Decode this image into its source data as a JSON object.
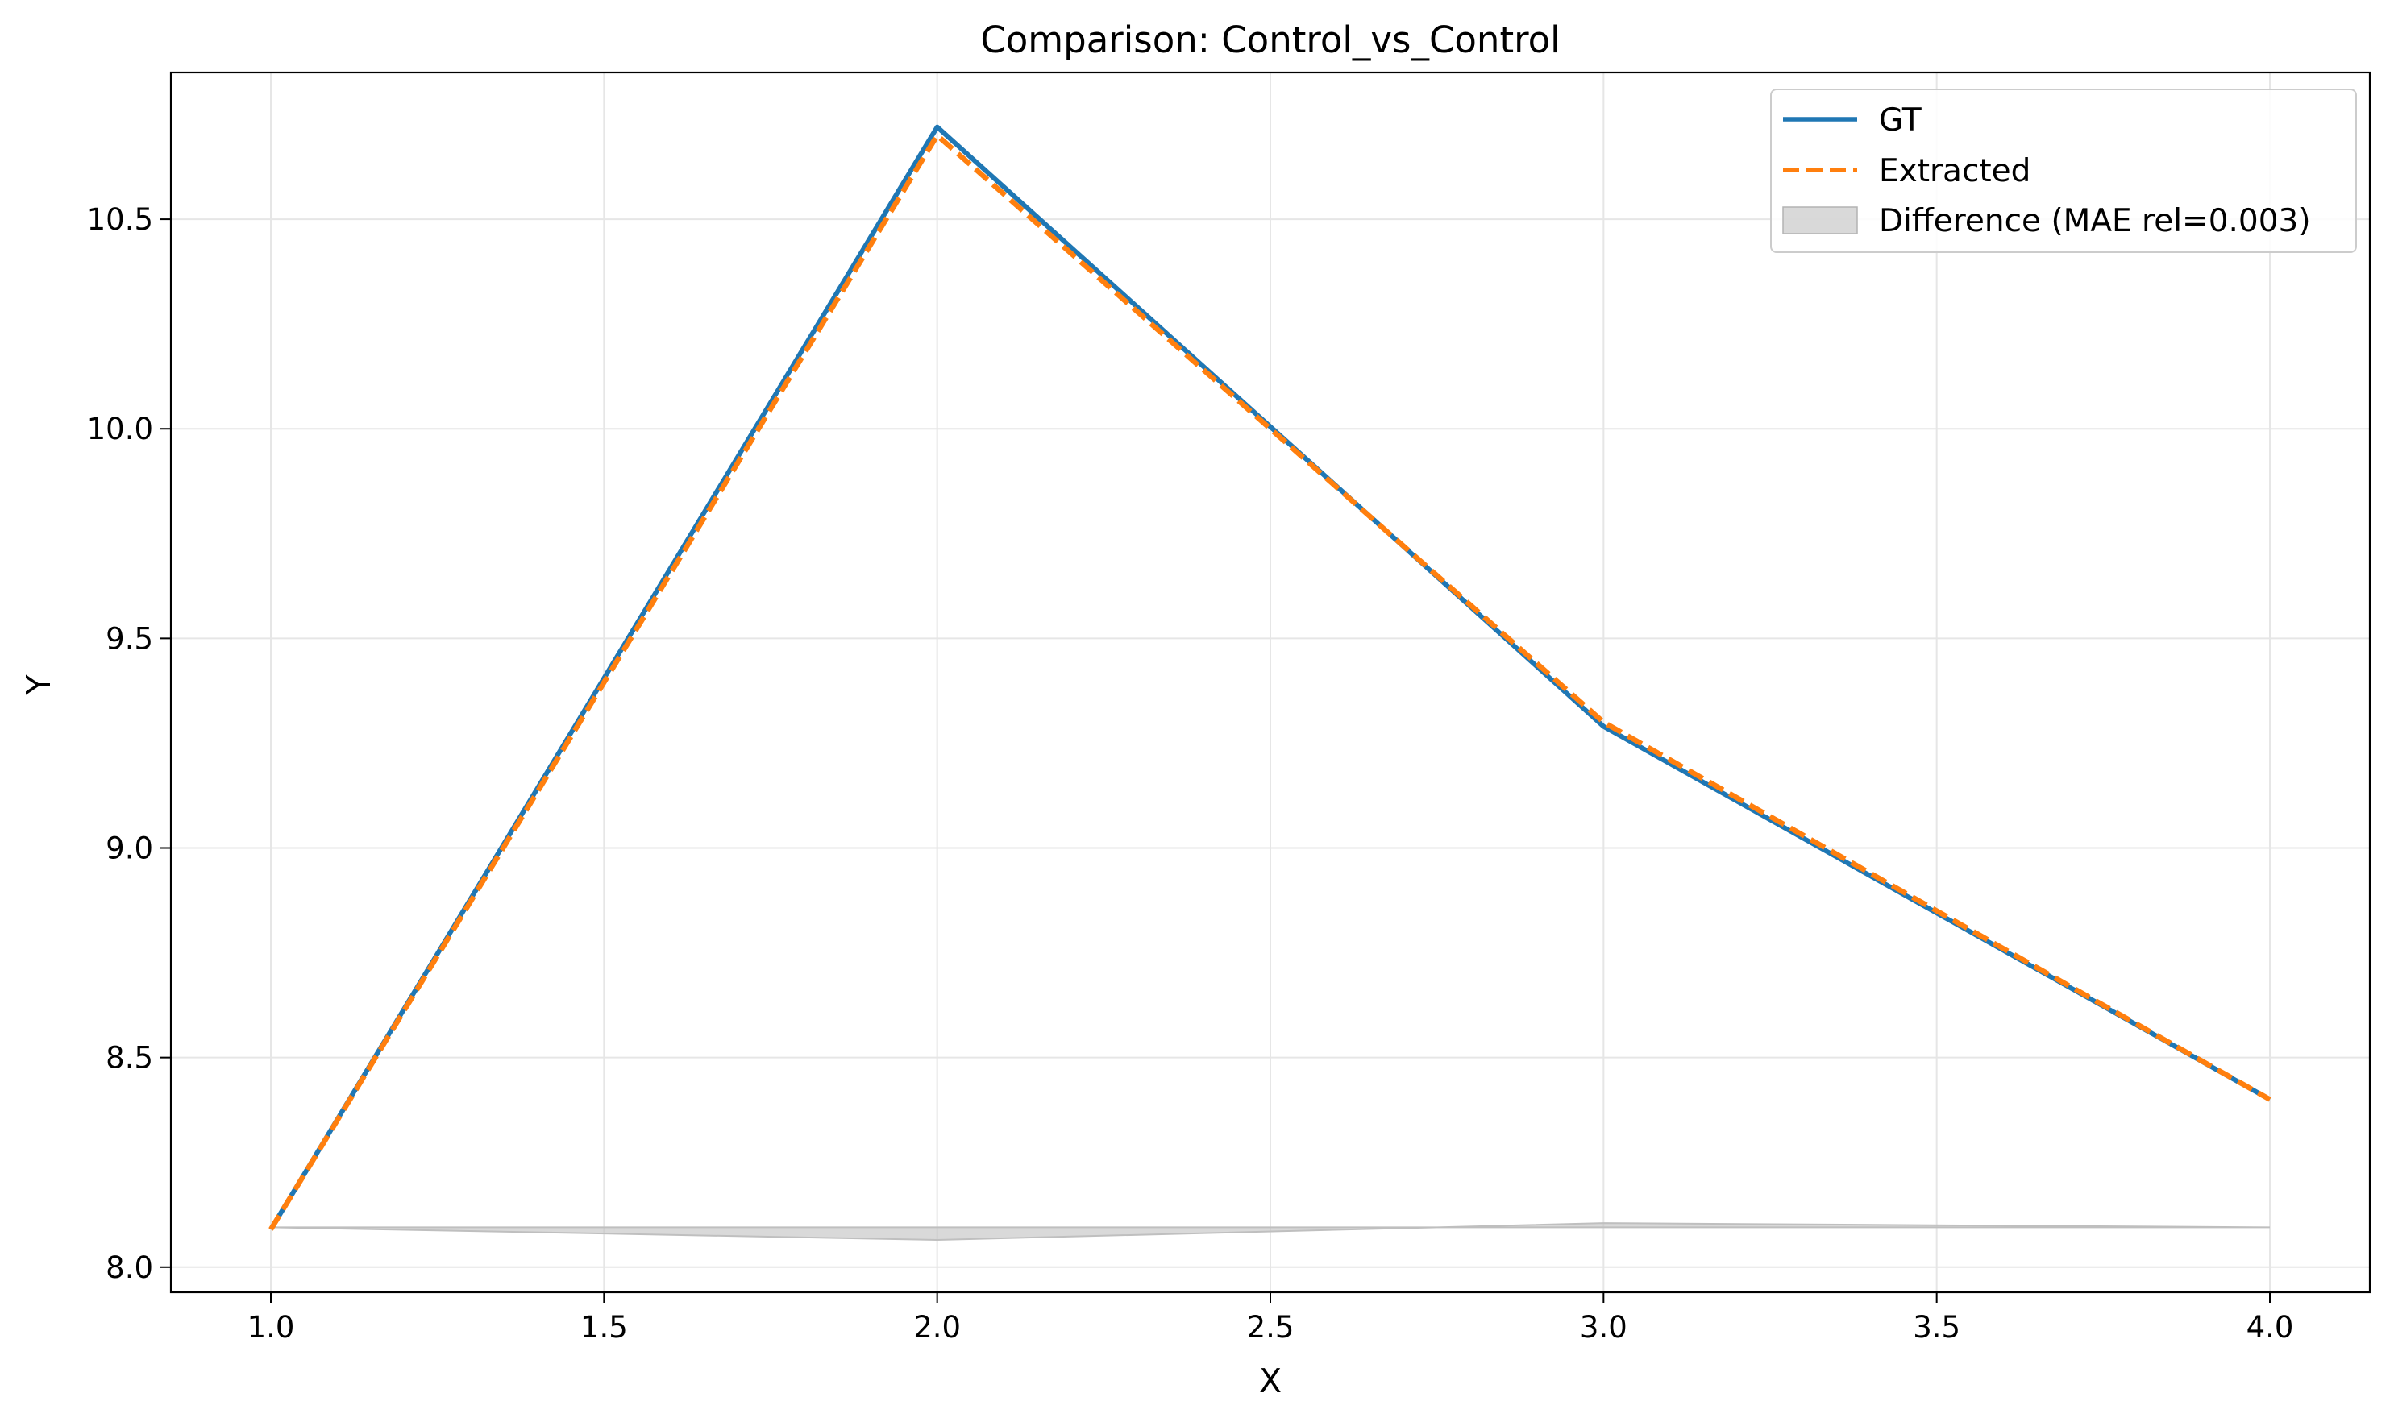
{
  "chart_data": {
    "type": "line",
    "title": "Comparison: Control_vs_Control",
    "xlabel": "X",
    "ylabel": "Y",
    "xlim": [
      0.85,
      4.15
    ],
    "ylim": [
      7.94,
      10.85
    ],
    "xticks": [
      1.0,
      1.5,
      2.0,
      2.5,
      3.0,
      3.5,
      4.0
    ],
    "xtick_labels": [
      "1.0",
      "1.5",
      "2.0",
      "2.5",
      "3.0",
      "3.5",
      "4.0"
    ],
    "yticks": [
      8.0,
      8.5,
      9.0,
      9.5,
      10.0,
      10.5
    ],
    "ytick_labels": [
      "8.0",
      "8.5",
      "9.0",
      "9.5",
      "10.0",
      "10.5"
    ],
    "grid": true,
    "legend_position": "top-right",
    "series": [
      {
        "name": "GT",
        "style": "solid",
        "color": "#1f77b4",
        "x": [
          1.0,
          2.0,
          3.0,
          4.0
        ],
        "y": [
          8.09,
          10.72,
          9.29,
          8.4
        ]
      },
      {
        "name": "Extracted",
        "style": "dashed",
        "color": "#ff7f0e",
        "x": [
          1.0,
          2.0,
          3.0,
          4.0
        ],
        "y": [
          8.09,
          10.7,
          9.3,
          8.4
        ]
      }
    ],
    "difference": {
      "name": "Difference (MAE rel=0.003)",
      "color": "#bfbfbf",
      "x": [
        1.0,
        2.0,
        3.0,
        4.0
      ],
      "baseline": 8.095,
      "y": [
        8.095,
        8.065,
        8.105,
        8.095
      ]
    }
  }
}
